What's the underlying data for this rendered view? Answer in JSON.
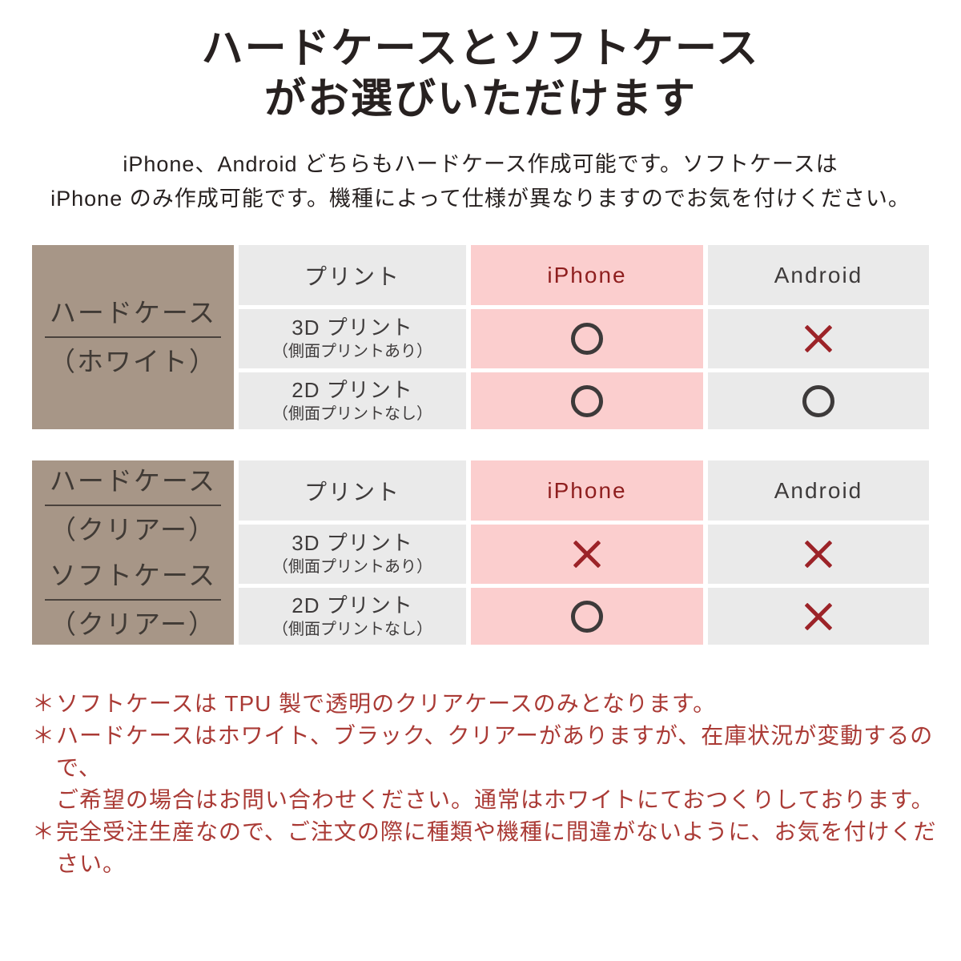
{
  "title": {
    "line1": "ハードケースとソフトケース",
    "line2": "がお選びいただけます"
  },
  "subtitle": {
    "line1": "iPhone、Android どちらもハードケース作成可能です。ソフトケースは",
    "line2": "iPhone のみ作成可能です。機種によって仕様が異なりますのでお気を付けください。"
  },
  "colors": {
    "side_block_brown": "#a79687",
    "cell_gray": "#eaeaea",
    "cell_pink": "#fbcece",
    "iphone_red": "#8e1e1e",
    "cross_red": "#9c2328",
    "circle_charcoal": "#3d3a3a",
    "note_red": "#aa3a35",
    "ink": "#272120"
  },
  "tables": [
    {
      "side_label": [
        {
          "text": "ハードケース"
        },
        {
          "text": "（ホワイト）"
        }
      ],
      "columns": {
        "print": "プリント",
        "iphone": "iPhone",
        "android": "Android"
      },
      "rows": [
        {
          "label": "3D プリント",
          "sublabel": "（側面プリントあり）",
          "iphone": "○",
          "android": "×"
        },
        {
          "label": "2D プリント",
          "sublabel": "（側面プリントなし）",
          "iphone": "○",
          "android": "○"
        }
      ]
    },
    {
      "side_label": [
        {
          "text": "ハードケース"
        },
        {
          "text": "（クリアー）"
        },
        {
          "text": "ソフトケース"
        },
        {
          "text": "（クリアー）"
        }
      ],
      "columns": {
        "print": "プリント",
        "iphone": "iPhone",
        "android": "Android"
      },
      "rows": [
        {
          "label": "3D プリント",
          "sublabel": "（側面プリントあり）",
          "iphone": "×",
          "android": "×"
        },
        {
          "label": "2D プリント",
          "sublabel": "（側面プリントなし）",
          "iphone": "○",
          "android": "×"
        }
      ]
    }
  ],
  "notes": [
    {
      "marker": "＊",
      "text": "ソフトケースは TPU 製で透明のクリアケースのみとなります。"
    },
    {
      "marker": "＊",
      "text": "ハードケースはホワイト、ブラック、クリアーがありますが、在庫状況が変動するので、"
    },
    {
      "marker": "",
      "text": "ご希望の場合はお問い合わせください。通常はホワイトにておつくりしております。"
    },
    {
      "marker": "＊",
      "text": "完全受注生産なので、ご注文の際に種類や機種に間違がないように、お気を付けください。"
    }
  ]
}
